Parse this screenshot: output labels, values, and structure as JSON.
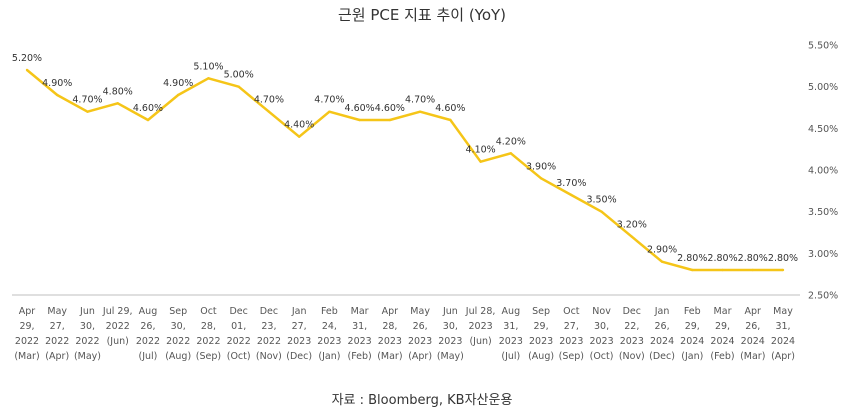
{
  "chart_data": {
    "type": "line",
    "title": "근원 PCE 지표 추이 (YoY)",
    "xlabel": "",
    "ylabel": "",
    "ylim": [
      0.025,
      0.055
    ],
    "y_ticks": [
      "2.50%",
      "3.00%",
      "3.50%",
      "4.00%",
      "4.50%",
      "5.00%",
      "5.50%"
    ],
    "y_tick_values": [
      0.025,
      0.03,
      0.035,
      0.04,
      0.045,
      0.05,
      0.055
    ],
    "y_axis_position": "right",
    "grid": false,
    "legend": "none",
    "line_color": "#F5C518",
    "categories": [
      [
        "Apr",
        "29,",
        "2022",
        "(Mar)"
      ],
      [
        "May",
        "27,",
        "2022",
        "(Apr)"
      ],
      [
        "Jun",
        "30,",
        "2022",
        "(May)"
      ],
      [
        "Jul 29,",
        "2022",
        "(Jun)"
      ],
      [
        "Aug",
        "26,",
        "2022",
        "(Jul)"
      ],
      [
        "Sep",
        "30,",
        "2022",
        "(Aug)"
      ],
      [
        "Oct",
        "28,",
        "2022",
        "(Sep)"
      ],
      [
        "Dec",
        "01,",
        "2022",
        "(Oct)"
      ],
      [
        "Dec",
        "23,",
        "2022",
        "(Nov)"
      ],
      [
        "Jan",
        "27,",
        "2023",
        "(Dec)"
      ],
      [
        "Feb",
        "24,",
        "2023",
        "(Jan)"
      ],
      [
        "Mar",
        "31,",
        "2023",
        "(Feb)"
      ],
      [
        "Apr",
        "28,",
        "2023",
        "(Mar)"
      ],
      [
        "May",
        "26,",
        "2023",
        "(Apr)"
      ],
      [
        "Jun",
        "30,",
        "2023",
        "(May)"
      ],
      [
        "Jul 28,",
        "2023",
        "(Jun)"
      ],
      [
        "Aug",
        "31,",
        "2023",
        "(Jul)"
      ],
      [
        "Sep",
        "29,",
        "2023",
        "(Aug)"
      ],
      [
        "Oct",
        "27,",
        "2023",
        "(Sep)"
      ],
      [
        "Nov",
        "30,",
        "2023",
        "(Oct)"
      ],
      [
        "Dec",
        "22,",
        "2023",
        "(Nov)"
      ],
      [
        "Jan",
        "26,",
        "2024",
        "(Dec)"
      ],
      [
        "Feb",
        "29,",
        "2024",
        "(Jan)"
      ],
      [
        "Mar",
        "29,",
        "2024",
        "(Feb)"
      ],
      [
        "Apr",
        "26,",
        "2024",
        "(Mar)"
      ],
      [
        "May",
        "31,",
        "2024",
        "(Apr)"
      ]
    ],
    "values": [
      0.052,
      0.049,
      0.047,
      0.048,
      0.046,
      0.049,
      0.051,
      0.05,
      0.047,
      0.044,
      0.047,
      0.046,
      0.046,
      0.047,
      0.046,
      0.041,
      0.042,
      0.039,
      0.037,
      0.035,
      0.032,
      0.029,
      0.028,
      0.028,
      0.028,
      0.028
    ],
    "data_labels": [
      "5.20%",
      "4.90%",
      "4.70%",
      "4.80%",
      "4.60%",
      "4.90%",
      "5.10%",
      "5.00%",
      "4.70%",
      "4.40%",
      "4.70%",
      "4.60%",
      "4.60%",
      "4.70%",
      "4.60%",
      "4.10%",
      "4.20%",
      "3.90%",
      "3.70%",
      "3.50%",
      "3.20%",
      "2.90%",
      "2.80%",
      "2.80%",
      "2.80%",
      "2.80%"
    ]
  },
  "source_note": "자료 : Bloomberg, KB자산운용"
}
